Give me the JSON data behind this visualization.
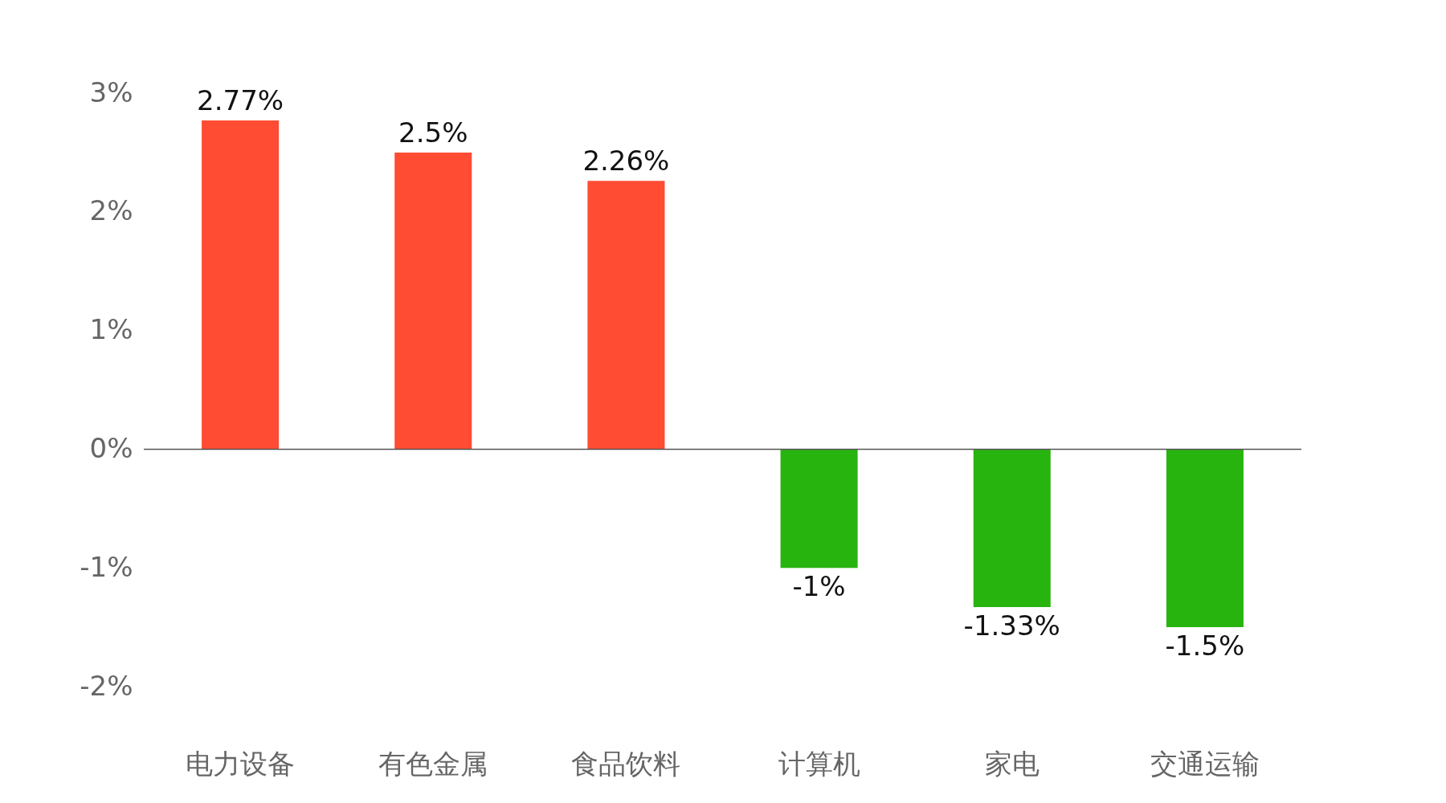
{
  "chart_data": {
    "type": "bar",
    "categories": [
      "电力设备",
      "有色金属",
      "食品饮料",
      "计算机",
      "家电",
      "交通运输"
    ],
    "values": [
      2.77,
      2.5,
      2.26,
      -1,
      -1.33,
      -1.5
    ],
    "colors": [
      "#ff4c33",
      "#ff4c33",
      "#ff4c33",
      "#28b40f",
      "#28b40f",
      "#28b40f"
    ],
    "value_labels": [
      "2.77%",
      "2.5%",
      "2.26%",
      "-1%",
      "-1.33%",
      "-1.5%"
    ],
    "ylim": [
      -2,
      3
    ],
    "yticks": [
      {
        "value": -2,
        "label": "-2%"
      },
      {
        "value": -1,
        "label": "-1%"
      },
      {
        "value": 0,
        "label": "0%"
      },
      {
        "value": 1,
        "label": "1%"
      },
      {
        "value": 2,
        "label": "2%"
      },
      {
        "value": 3,
        "label": "3%"
      }
    ]
  }
}
